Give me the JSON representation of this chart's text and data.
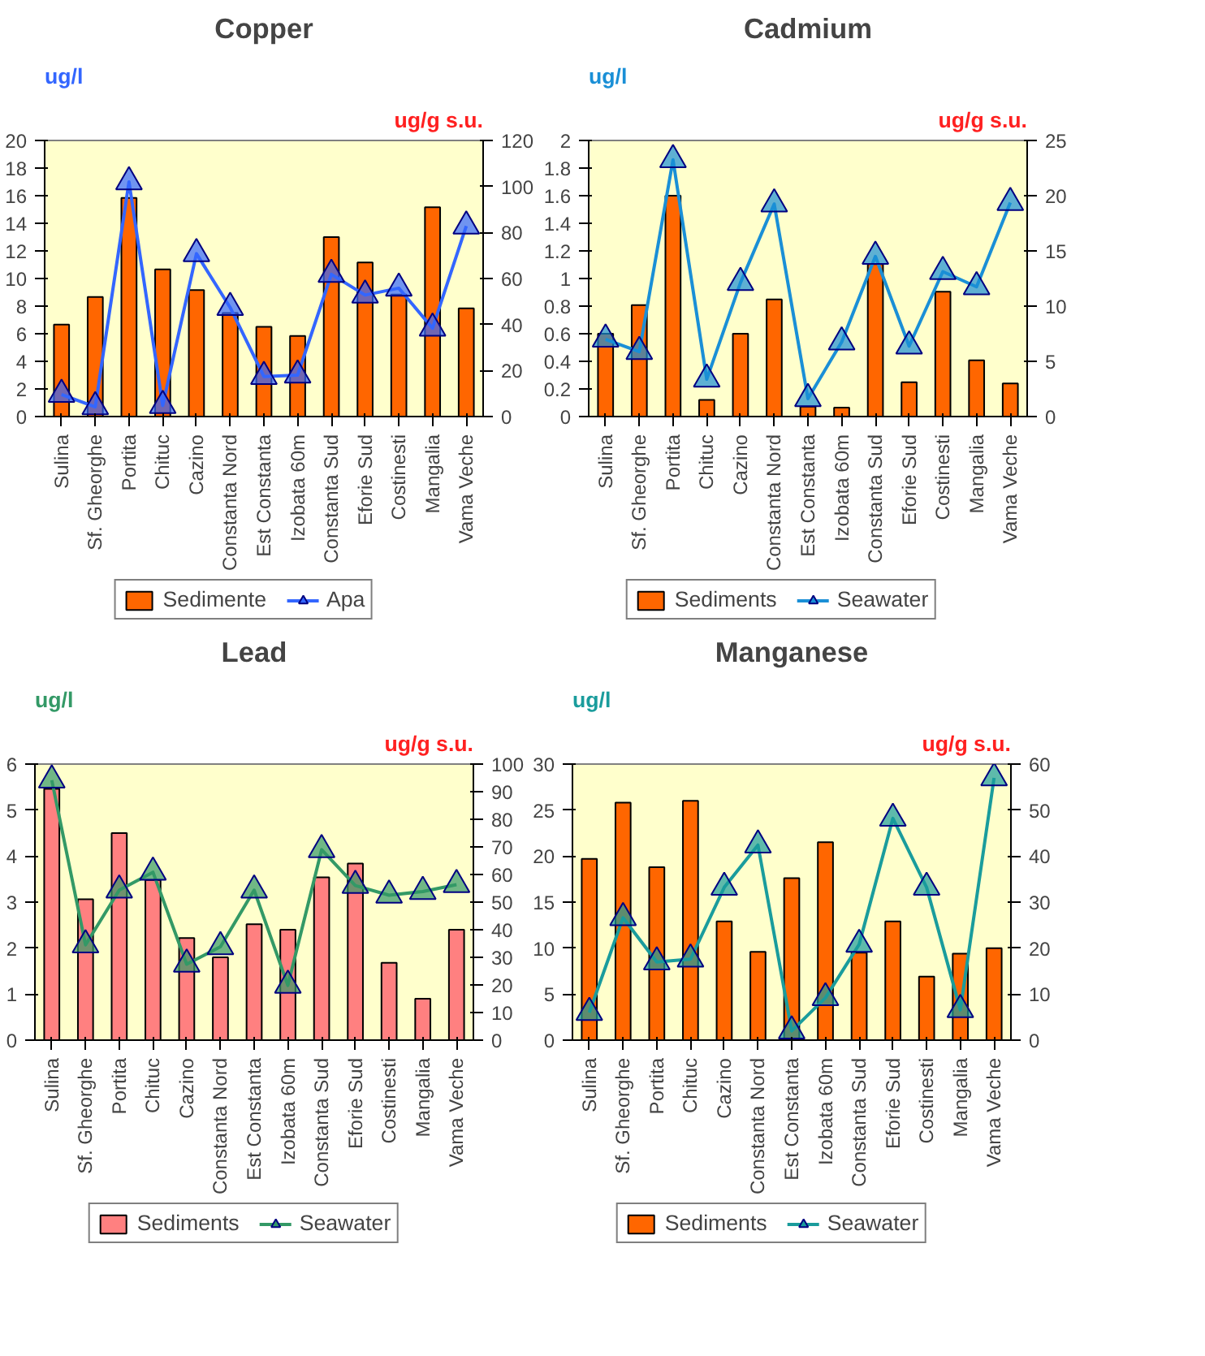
{
  "chart_data": [
    {
      "type": "bar",
      "title": "Copper",
      "ylabel": "ug/l",
      "y2label": "ug/g s.u.",
      "categories": [
        "Sulina",
        "Sf. Gheorghe",
        "Portita",
        "Chituc",
        "Cazino",
        "Constanta Nord",
        "Est Constanta",
        "Izobata 60m",
        "Constanta Sud",
        "Eforie Sud",
        "Costinesti",
        "Mangalia",
        "Vama Veche"
      ],
      "series": [
        {
          "name": "Sedimente",
          "axis": "y2",
          "color": "#ff6600",
          "values": [
            40,
            52,
            95,
            64,
            55,
            45,
            39,
            35,
            78,
            67,
            53,
            91,
            47
          ]
        },
        {
          "name": "Apa",
          "type": "line",
          "axis": "y",
          "color": "#3366ff",
          "marker": "triangle",
          "values": [
            1.6,
            0.7,
            17,
            0.8,
            11.8,
            7.9,
            2.9,
            3.0,
            10.3,
            8.8,
            9.3,
            6.4,
            13.8
          ]
        }
      ],
      "ylim": [
        0,
        20
      ],
      "yticks": [
        0,
        2,
        4,
        6,
        8,
        10,
        12,
        14,
        16,
        18,
        20
      ],
      "y2lim": [
        0,
        120
      ],
      "y2ticks": [
        0,
        20,
        40,
        60,
        80,
        100,
        120
      ],
      "grid": false,
      "legend": "bottom"
    },
    {
      "type": "bar",
      "title": "Cadmium",
      "ylabel": "ug/l",
      "y2label": "ug/g s.u.",
      "categories": [
        "Sulina",
        "Sf. Gheorghe",
        "Portita",
        "Chituc",
        "Cazino",
        "Constanta Nord",
        "Est Constanta",
        "Izobata 60m",
        "Constanta Sud",
        "Eforie Sud",
        "Costinesti",
        "Mangalia",
        "Vama Veche"
      ],
      "series": [
        {
          "name": "Sediments",
          "axis": "y2",
          "color": "#ff6600",
          "values": [
            7.5,
            10.1,
            20,
            1.5,
            7.5,
            10.6,
            0.9,
            0.8,
            13.8,
            3.1,
            11.3,
            5.1,
            3.0
          ]
        },
        {
          "name": "Seawater",
          "type": "line",
          "axis": "y",
          "color": "#1a8fd6",
          "marker": "triangle",
          "values": [
            0.56,
            0.47,
            1.86,
            0.27,
            0.97,
            1.54,
            0.13,
            0.54,
            1.16,
            0.51,
            1.05,
            0.94,
            1.55
          ]
        }
      ],
      "ylim": [
        0,
        2
      ],
      "yticks": [
        0,
        0.2,
        0.4,
        0.6,
        0.8,
        1,
        1.2,
        1.4,
        1.6,
        1.8,
        2
      ],
      "y2lim": [
        0,
        25
      ],
      "y2ticks": [
        0,
        5,
        10,
        15,
        20,
        25
      ],
      "grid": false,
      "legend": "bottom"
    },
    {
      "type": "bar",
      "title": "Lead",
      "ylabel": "ug/l",
      "y2label": "ug/g s.u.",
      "categories": [
        "Sulina",
        "Sf. Gheorghe",
        "Portita",
        "Chituc",
        "Cazino",
        "Constanta Nord",
        "Est Constanta",
        "Izobata 60m",
        "Constanta Sud",
        "Eforie Sud",
        "Costinesti",
        "Mangalia",
        "Vama Veche"
      ],
      "series": [
        {
          "name": "Sediments",
          "axis": "y2",
          "color": "#ff8080",
          "values": [
            91,
            51,
            75,
            58,
            37,
            30,
            42,
            40,
            59,
            64,
            28,
            15,
            40
          ]
        },
        {
          "name": "Seawater",
          "type": "line",
          "axis": "y",
          "color": "#339966",
          "marker": "triangle",
          "values": [
            5.65,
            2.07,
            3.26,
            3.65,
            1.65,
            2.03,
            3.26,
            1.19,
            4.14,
            3.36,
            3.15,
            3.23,
            3.38
          ]
        }
      ],
      "ylim": [
        0,
        6
      ],
      "yticks": [
        0,
        1,
        2,
        3,
        4,
        5,
        6
      ],
      "y2lim": [
        0,
        100
      ],
      "y2ticks": [
        0,
        10,
        20,
        30,
        40,
        50,
        60,
        70,
        80,
        90,
        100
      ],
      "grid": false,
      "legend": "bottom"
    },
    {
      "type": "bar",
      "title": "Manganese",
      "ylabel": "ug/l",
      "y2label": "ug/g s.u.",
      "categories": [
        "Sulina",
        "Sf. Gheorghe",
        "Portita",
        "Chituc",
        "Cazino",
        "Constanta Nord",
        "Est Constanta",
        "Izobata 60m",
        "Constanta Sud",
        "Eforie Sud",
        "Costinesti",
        "Mangalia",
        "Vama Veche"
      ],
      "series": [
        {
          "name": "Sediments",
          "axis": "y2",
          "color": "#ff6600",
          "values": [
            39.4,
            51.6,
            37.6,
            52,
            25.8,
            19.2,
            35.2,
            43,
            19,
            25.8,
            13.8,
            18.8,
            20
          ]
        },
        {
          "name": "Seawater",
          "type": "line",
          "axis": "y",
          "color": "#1a9c9c",
          "marker": "triangle",
          "values": [
            3.0,
            13.3,
            8.5,
            8.8,
            16.6,
            21.2,
            1,
            4.6,
            10.4,
            24.1,
            16.6,
            3.3,
            28.5
          ]
        }
      ],
      "ylim": [
        0,
        30
      ],
      "yticks": [
        0,
        5,
        10,
        15,
        20,
        25,
        30
      ],
      "y2lim": [
        0,
        60
      ],
      "y2ticks": [
        0,
        10,
        20,
        30,
        40,
        50,
        60
      ],
      "grid": false,
      "legend": "bottom"
    }
  ]
}
